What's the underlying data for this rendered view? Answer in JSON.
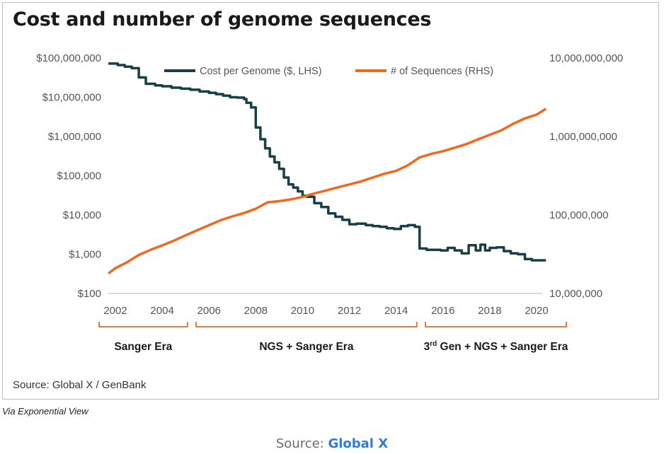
{
  "title": "Cost and number of genome sequences",
  "source_inner": "Source: Global X / GenBank",
  "via": "Via Exponential View",
  "footer": {
    "prefix": "Source: ",
    "link": "Global X"
  },
  "colors": {
    "cost": "#173f46",
    "sequences": "#ef6a1f",
    "era_bracket": "#ef6a1f",
    "axis": "#cfcfcf"
  },
  "eras": [
    {
      "label": "Sanger Era",
      "from": 2002,
      "to": 2005.2
    },
    {
      "label": "NGS + Sanger Era",
      "from": 2005.3,
      "to": 2015.0
    },
    {
      "label": "3rd Gen + NGS + Sanger Era",
      "from": 2015.1,
      "to": 2020.5
    }
  ],
  "chart_data": {
    "type": "line",
    "title": "Cost and number of genome sequences",
    "legend": "top",
    "grid": false,
    "x_range": [
      2002,
      2020
    ],
    "x_ticks": [
      "2002",
      "2004",
      "2006",
      "2008",
      "2010",
      "2012",
      "2014",
      "2016",
      "2018",
      "2020"
    ],
    "y_left": {
      "scale": "log",
      "range": [
        100,
        100000000
      ],
      "ticks": [
        "$100",
        "$1,000",
        "$10,000",
        "$100,000",
        "$1,000,000",
        "$10,000,000",
        "$100,000,000"
      ]
    },
    "y_right": {
      "scale": "log",
      "range": [
        10000000,
        10000000000
      ],
      "ticks": [
        "10,000,000",
        "100,000,000",
        "1,000,000,000",
        "10,000,000,000"
      ]
    },
    "series": [
      {
        "name": "Cost per Genome ($, LHS)",
        "axis": "left",
        "x": [
          2001.7,
          2002.1,
          2002.4,
          2002.7,
          2003.0,
          2003.3,
          2003.7,
          2004.0,
          2004.4,
          2004.8,
          2005.2,
          2005.6,
          2006.0,
          2006.3,
          2006.6,
          2006.9,
          2007.2,
          2007.5,
          2007.6,
          2007.8,
          2008.0,
          2008.2,
          2008.4,
          2008.6,
          2008.8,
          2009.0,
          2009.2,
          2009.4,
          2009.6,
          2009.8,
          2010.0,
          2010.2,
          2010.5,
          2010.8,
          2011.1,
          2011.4,
          2011.7,
          2012.0,
          2012.3,
          2012.7,
          2013.0,
          2013.3,
          2013.6,
          2013.9,
          2014.2,
          2014.5,
          2014.8,
          2015.0,
          2015.3,
          2015.6,
          2015.9,
          2016.2,
          2016.5,
          2016.8,
          2017.1,
          2017.4,
          2017.6,
          2017.8,
          2018.0,
          2018.3,
          2018.6,
          2018.9,
          2019.2,
          2019.5,
          2019.8,
          2020.1,
          2020.4
        ],
        "y": [
          72000000,
          66000000,
          60000000,
          55000000,
          32000000,
          22000000,
          20000000,
          19000000,
          17500000,
          16500000,
          15500000,
          14000000,
          13000000,
          12000000,
          11000000,
          10000000,
          9800000,
          9000000,
          7200000,
          5500000,
          1700000,
          850000,
          500000,
          310000,
          220000,
          150000,
          90000,
          60000,
          50000,
          40000,
          31000,
          29000,
          20000,
          16000,
          11000,
          9000,
          7500,
          5800,
          6000,
          5500,
          5200,
          5000,
          4600,
          4400,
          5200,
          5500,
          5000,
          1400,
          1300,
          1300,
          1250,
          1450,
          1250,
          1050,
          1700,
          1250,
          1750,
          1250,
          1450,
          1500,
          1200,
          1050,
          1000,
          750,
          700,
          700,
          700
        ]
      },
      {
        "name": "# of Sequences (RHS)",
        "axis": "right",
        "x": [
          2001.7,
          2002.0,
          2002.5,
          2003.0,
          2003.5,
          2004.0,
          2004.5,
          2005.0,
          2005.5,
          2006.0,
          2006.5,
          2007.0,
          2007.5,
          2008.0,
          2008.5,
          2009.0,
          2009.5,
          2010.0,
          2010.5,
          2011.0,
          2011.5,
          2012.0,
          2012.5,
          2013.0,
          2013.5,
          2014.0,
          2014.5,
          2015.0,
          2015.5,
          2016.0,
          2016.5,
          2017.0,
          2017.5,
          2018.0,
          2018.5,
          2019.0,
          2019.5,
          2020.0,
          2020.4
        ],
        "y": [
          18000000,
          21000000,
          25000000,
          31000000,
          36000000,
          41000000,
          47000000,
          55000000,
          64000000,
          74000000,
          86000000,
          96000000,
          106000000,
          120000000,
          145000000,
          150000000,
          158000000,
          170000000,
          188000000,
          205000000,
          225000000,
          245000000,
          268000000,
          300000000,
          335000000,
          365000000,
          430000000,
          540000000,
          600000000,
          650000000,
          720000000,
          800000000,
          920000000,
          1050000000,
          1200000000,
          1450000000,
          1700000000,
          1900000000,
          2250000000
        ]
      }
    ]
  }
}
